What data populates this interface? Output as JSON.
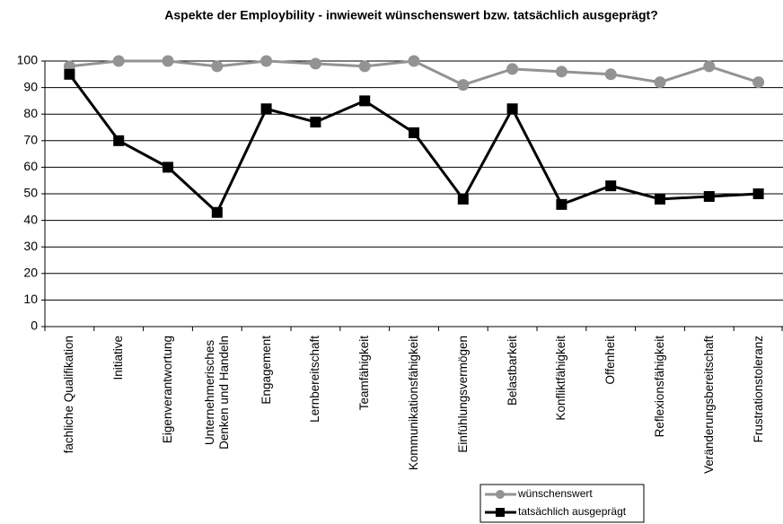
{
  "chart_data": {
    "type": "line",
    "title": "Aspekte der Employbility - inwieweit wünschenswert bzw. tatsächlich ausgeprägt?",
    "categories": [
      "fachliche Qualifikation",
      "Initiative",
      "Eigenverantwortung",
      "Unternehmerisches\nDenken und Handeln",
      "Engagement",
      "Lernbereitschaft",
      "Teamfähigkeit",
      "Kommunikationsfähigkeit",
      "Einfühlungsvermögen",
      "Belastbarkeit",
      "Konfliktfähigkeit",
      "Offenheit",
      "Reflexionsfähigkeit",
      "Veränderungsbereitschaft",
      "Frustrationstoleranz"
    ],
    "series": [
      {
        "name": "wünschenswert",
        "color": "#939393",
        "marker": "circle",
        "values": [
          98,
          100,
          100,
          98,
          100,
          99,
          98,
          100,
          91,
          97,
          96,
          95,
          92,
          98,
          92
        ]
      },
      {
        "name": "tatsächlich ausgeprägt",
        "color": "#000000",
        "marker": "square",
        "values": [
          95,
          70,
          60,
          43,
          82,
          77,
          85,
          73,
          48,
          82,
          46,
          53,
          48,
          49,
          50
        ]
      }
    ],
    "ylim": [
      0,
      100
    ],
    "yticks": [
      0,
      10,
      20,
      30,
      40,
      50,
      60,
      70,
      80,
      90,
      100
    ],
    "grid": true,
    "legend": "bottom-right"
  }
}
